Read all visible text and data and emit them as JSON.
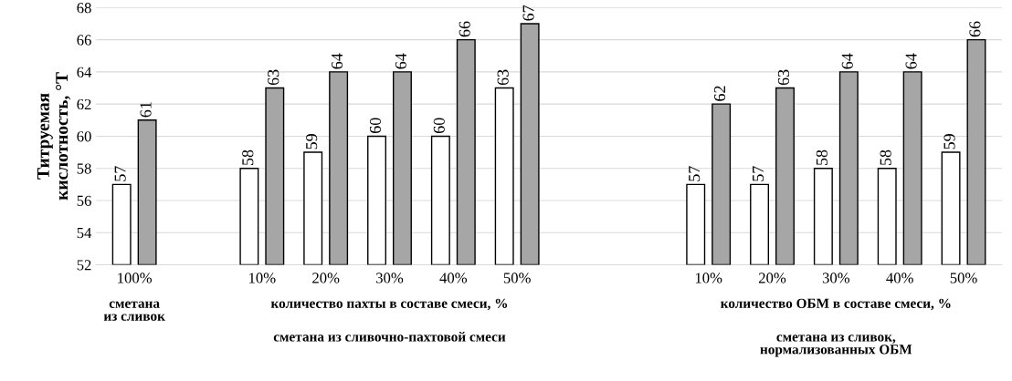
{
  "chart_data": {
    "type": "bar",
    "ylabel": "Титруемая\nкислотность, °Т",
    "categories": [
      "100%",
      null,
      "10%",
      "20%",
      "30%",
      "40%",
      "50%",
      null,
      null,
      "10%",
      "20%",
      "30%",
      "40%",
      "50%"
    ],
    "series": [
      {
        "color": "#ffffff",
        "values": [
          57,
          null,
          58,
          59,
          60,
          60,
          63,
          null,
          null,
          57,
          57,
          58,
          58,
          59
        ]
      },
      {
        "color": "#a6a6a6",
        "values": [
          61,
          null,
          63,
          64,
          64,
          66,
          67,
          null,
          null,
          62,
          63,
          64,
          64,
          66
        ]
      }
    ],
    "ylim": [
      52,
      68
    ],
    "yticks": [
      52,
      54,
      56,
      58,
      60,
      62,
      64,
      66,
      68
    ],
    "grid": "y",
    "legend": false,
    "data_labels": true,
    "annotations": [
      "сметана\nиз сливок",
      "количество пахты в составе смеси, %",
      "сметана из сливочно-пахтовой смеси",
      "количество ОБМ в составе смеси, %",
      "сметана из сливок,\nнормализованных ОБМ"
    ]
  }
}
